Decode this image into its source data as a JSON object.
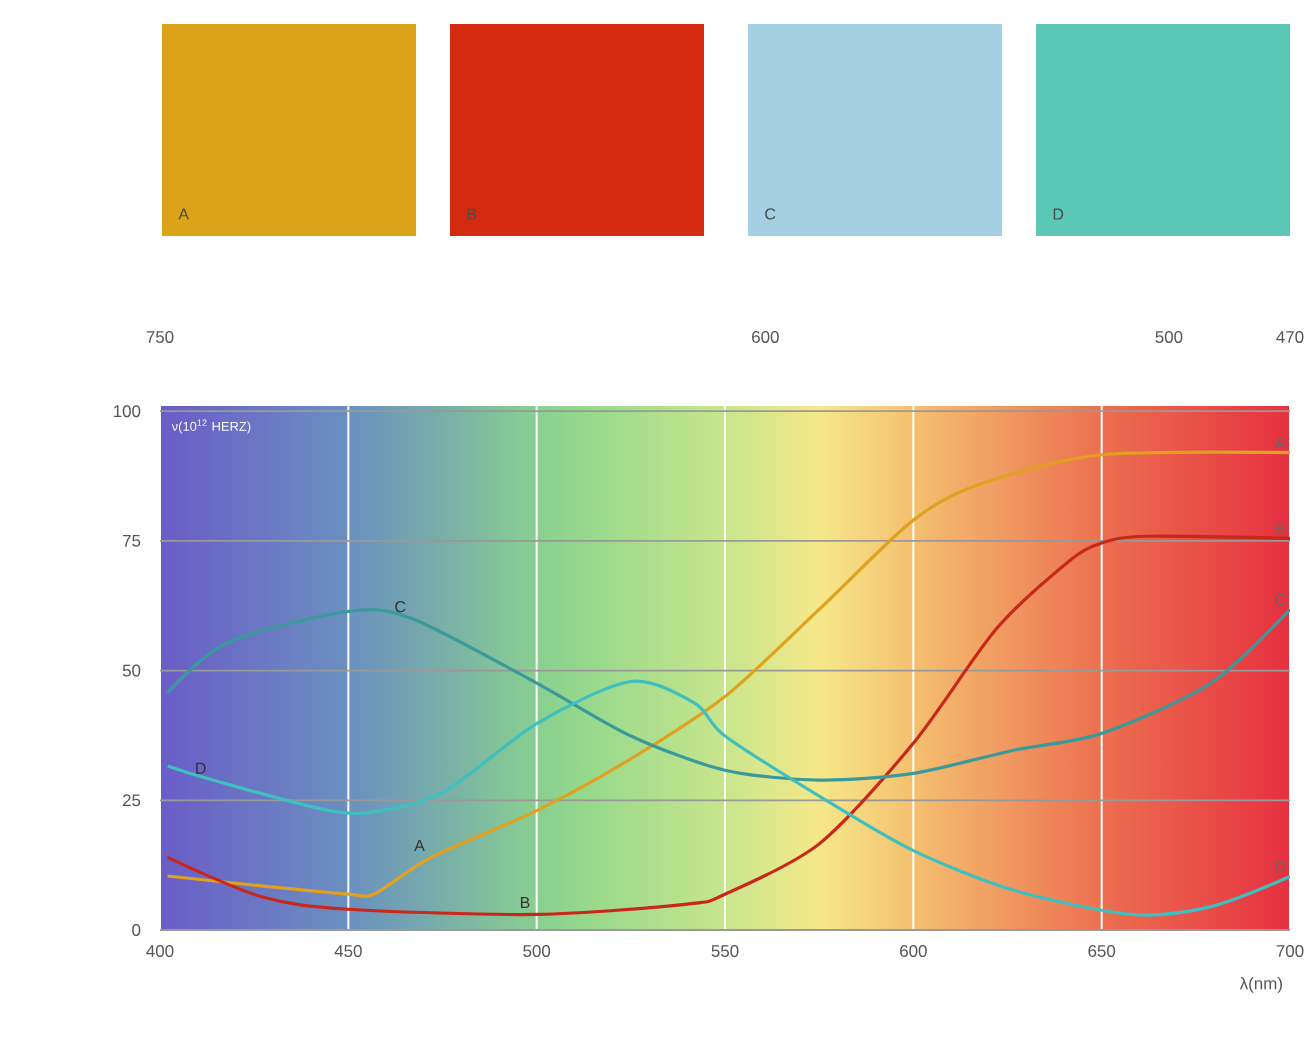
{
  "chart_data": {
    "type": "line",
    "xlabel": "λ(nm)",
    "x2label": "ν(10$^{12}$ HERZ)",
    "xlim": [
      400,
      700
    ],
    "ylim": [
      0,
      101
    ],
    "xticks": [
      400,
      450,
      500,
      550,
      600,
      650,
      700
    ],
    "yticks": [
      0,
      25,
      50,
      75,
      100
    ],
    "x2lim": [
      750,
      470
    ],
    "x2ticks": [
      750,
      600,
      500,
      470
    ],
    "grid": true,
    "legend": false,
    "series": [
      {
        "name": "A",
        "color": "#e0a020",
        "x": [
          402,
          427,
          450,
          457,
          472,
          500,
          525,
          550,
          575,
          600,
          618,
          650,
          700
        ],
        "values": [
          10.4,
          8.5,
          6.9,
          7,
          14,
          23,
          33,
          45,
          61.8,
          79,
          86,
          91.6,
          92
        ]
      },
      {
        "name": "B",
        "color": "#c8281a",
        "x": [
          402,
          427,
          450,
          500,
          540,
          550,
          575,
          600,
          622,
          641,
          650,
          662,
          700
        ],
        "values": [
          14,
          6.4,
          4,
          3,
          5,
          6.9,
          16.6,
          36,
          58,
          70.9,
          74.6,
          75.9,
          75.5
        ]
      },
      {
        "name": "C",
        "color": "#3a9a9a",
        "x": [
          402,
          418,
          450,
          467,
          500,
          525,
          550,
          575,
          600,
          627,
          650,
          679,
          700
        ],
        "values": [
          45.7,
          55.4,
          61.4,
          60,
          47.6,
          37.4,
          30.8,
          28.9,
          30.2,
          34.7,
          37.9,
          47.6,
          61.8
        ]
      },
      {
        "name": "D",
        "color": "#3ec0c0",
        "x": [
          402,
          414,
          445,
          459,
          476,
          500,
          525,
          542,
          550,
          575,
          600,
          627,
          658,
          679,
          700
        ],
        "values": [
          31.6,
          28.9,
          23,
          23,
          26.9,
          39.8,
          47.9,
          43.7,
          37.4,
          25.8,
          15.3,
          7.6,
          3,
          4.5,
          10.3
        ]
      }
    ],
    "annotations": [
      {
        "text": "C",
        "x": 467,
        "y": 60
      },
      {
        "text": "D",
        "x": 414,
        "y": 28.9
      },
      {
        "text": "A",
        "x": 472,
        "y": 14
      },
      {
        "text": "B",
        "x": 500,
        "y": 3
      }
    ]
  }
}
